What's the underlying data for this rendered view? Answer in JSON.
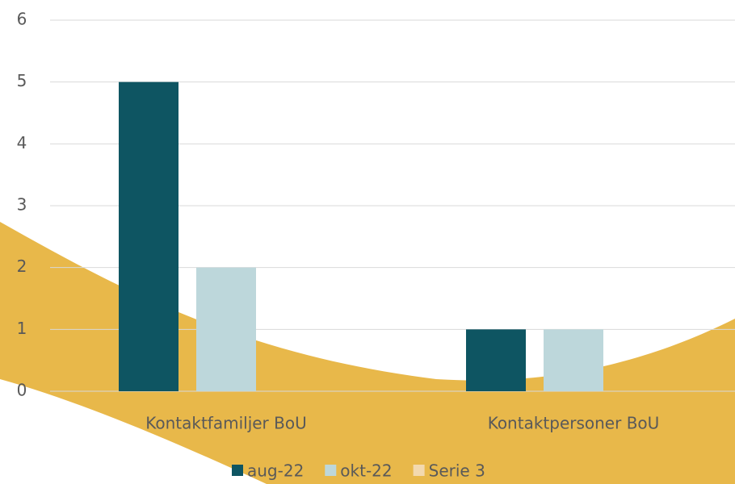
{
  "chart_data": {
    "type": "bar",
    "categories": [
      "Kontaktfamiljer BoU",
      "Kontaktpersoner BoU"
    ],
    "series": [
      {
        "name": "aug-22",
        "color": "#0e5562",
        "values": [
          5,
          1
        ]
      },
      {
        "name": "okt-22",
        "color": "#bdd7db",
        "values": [
          2,
          1
        ]
      },
      {
        "name": "Serie 3",
        "color": "#f3d9ae",
        "values": [
          null,
          null
        ]
      }
    ],
    "ylim": [
      0,
      6
    ],
    "yticks": [
      0,
      1,
      2,
      3,
      4,
      5,
      6
    ],
    "grid": true,
    "legend": "bottom"
  }
}
